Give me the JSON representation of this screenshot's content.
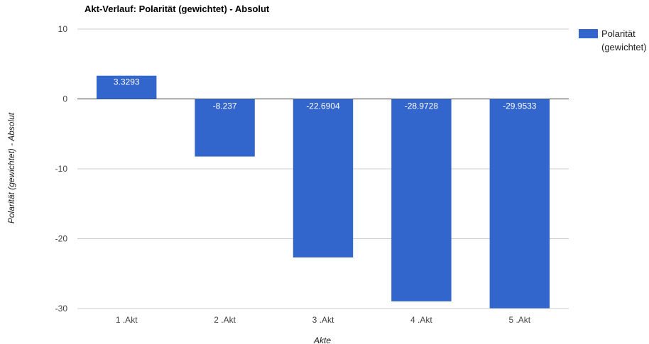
{
  "chart_data": {
    "type": "bar",
    "title": "Akt-Verlauf: Polarität (gewichtet) - Absolut",
    "xlabel": "Akte",
    "ylabel": "Polarität (gewichtet) - Absolut",
    "categories": [
      "1 .Akt",
      "2 .Akt",
      "3 .Akt",
      "4 .Akt",
      "5 .Akt"
    ],
    "series": [
      {
        "name": "Polarität (gewichtet)",
        "values": [
          3.3293,
          -8.237,
          -22.6904,
          -28.9728,
          -29.9533
        ],
        "labels": [
          "3.3293",
          "-8.237",
          "-22.6904",
          "-28.9728",
          "-29.9533"
        ]
      }
    ],
    "ylim": [
      -30,
      10
    ],
    "yticks": [
      10,
      0,
      -10,
      -20,
      -30
    ],
    "grid": true,
    "legend_position": "right",
    "colors": {
      "bar": "#3366cc",
      "grid": "#cccccc",
      "baseline": "#333333"
    },
    "legend": {
      "lines": [
        "Polarität",
        "(gewichtet)"
      ]
    }
  }
}
